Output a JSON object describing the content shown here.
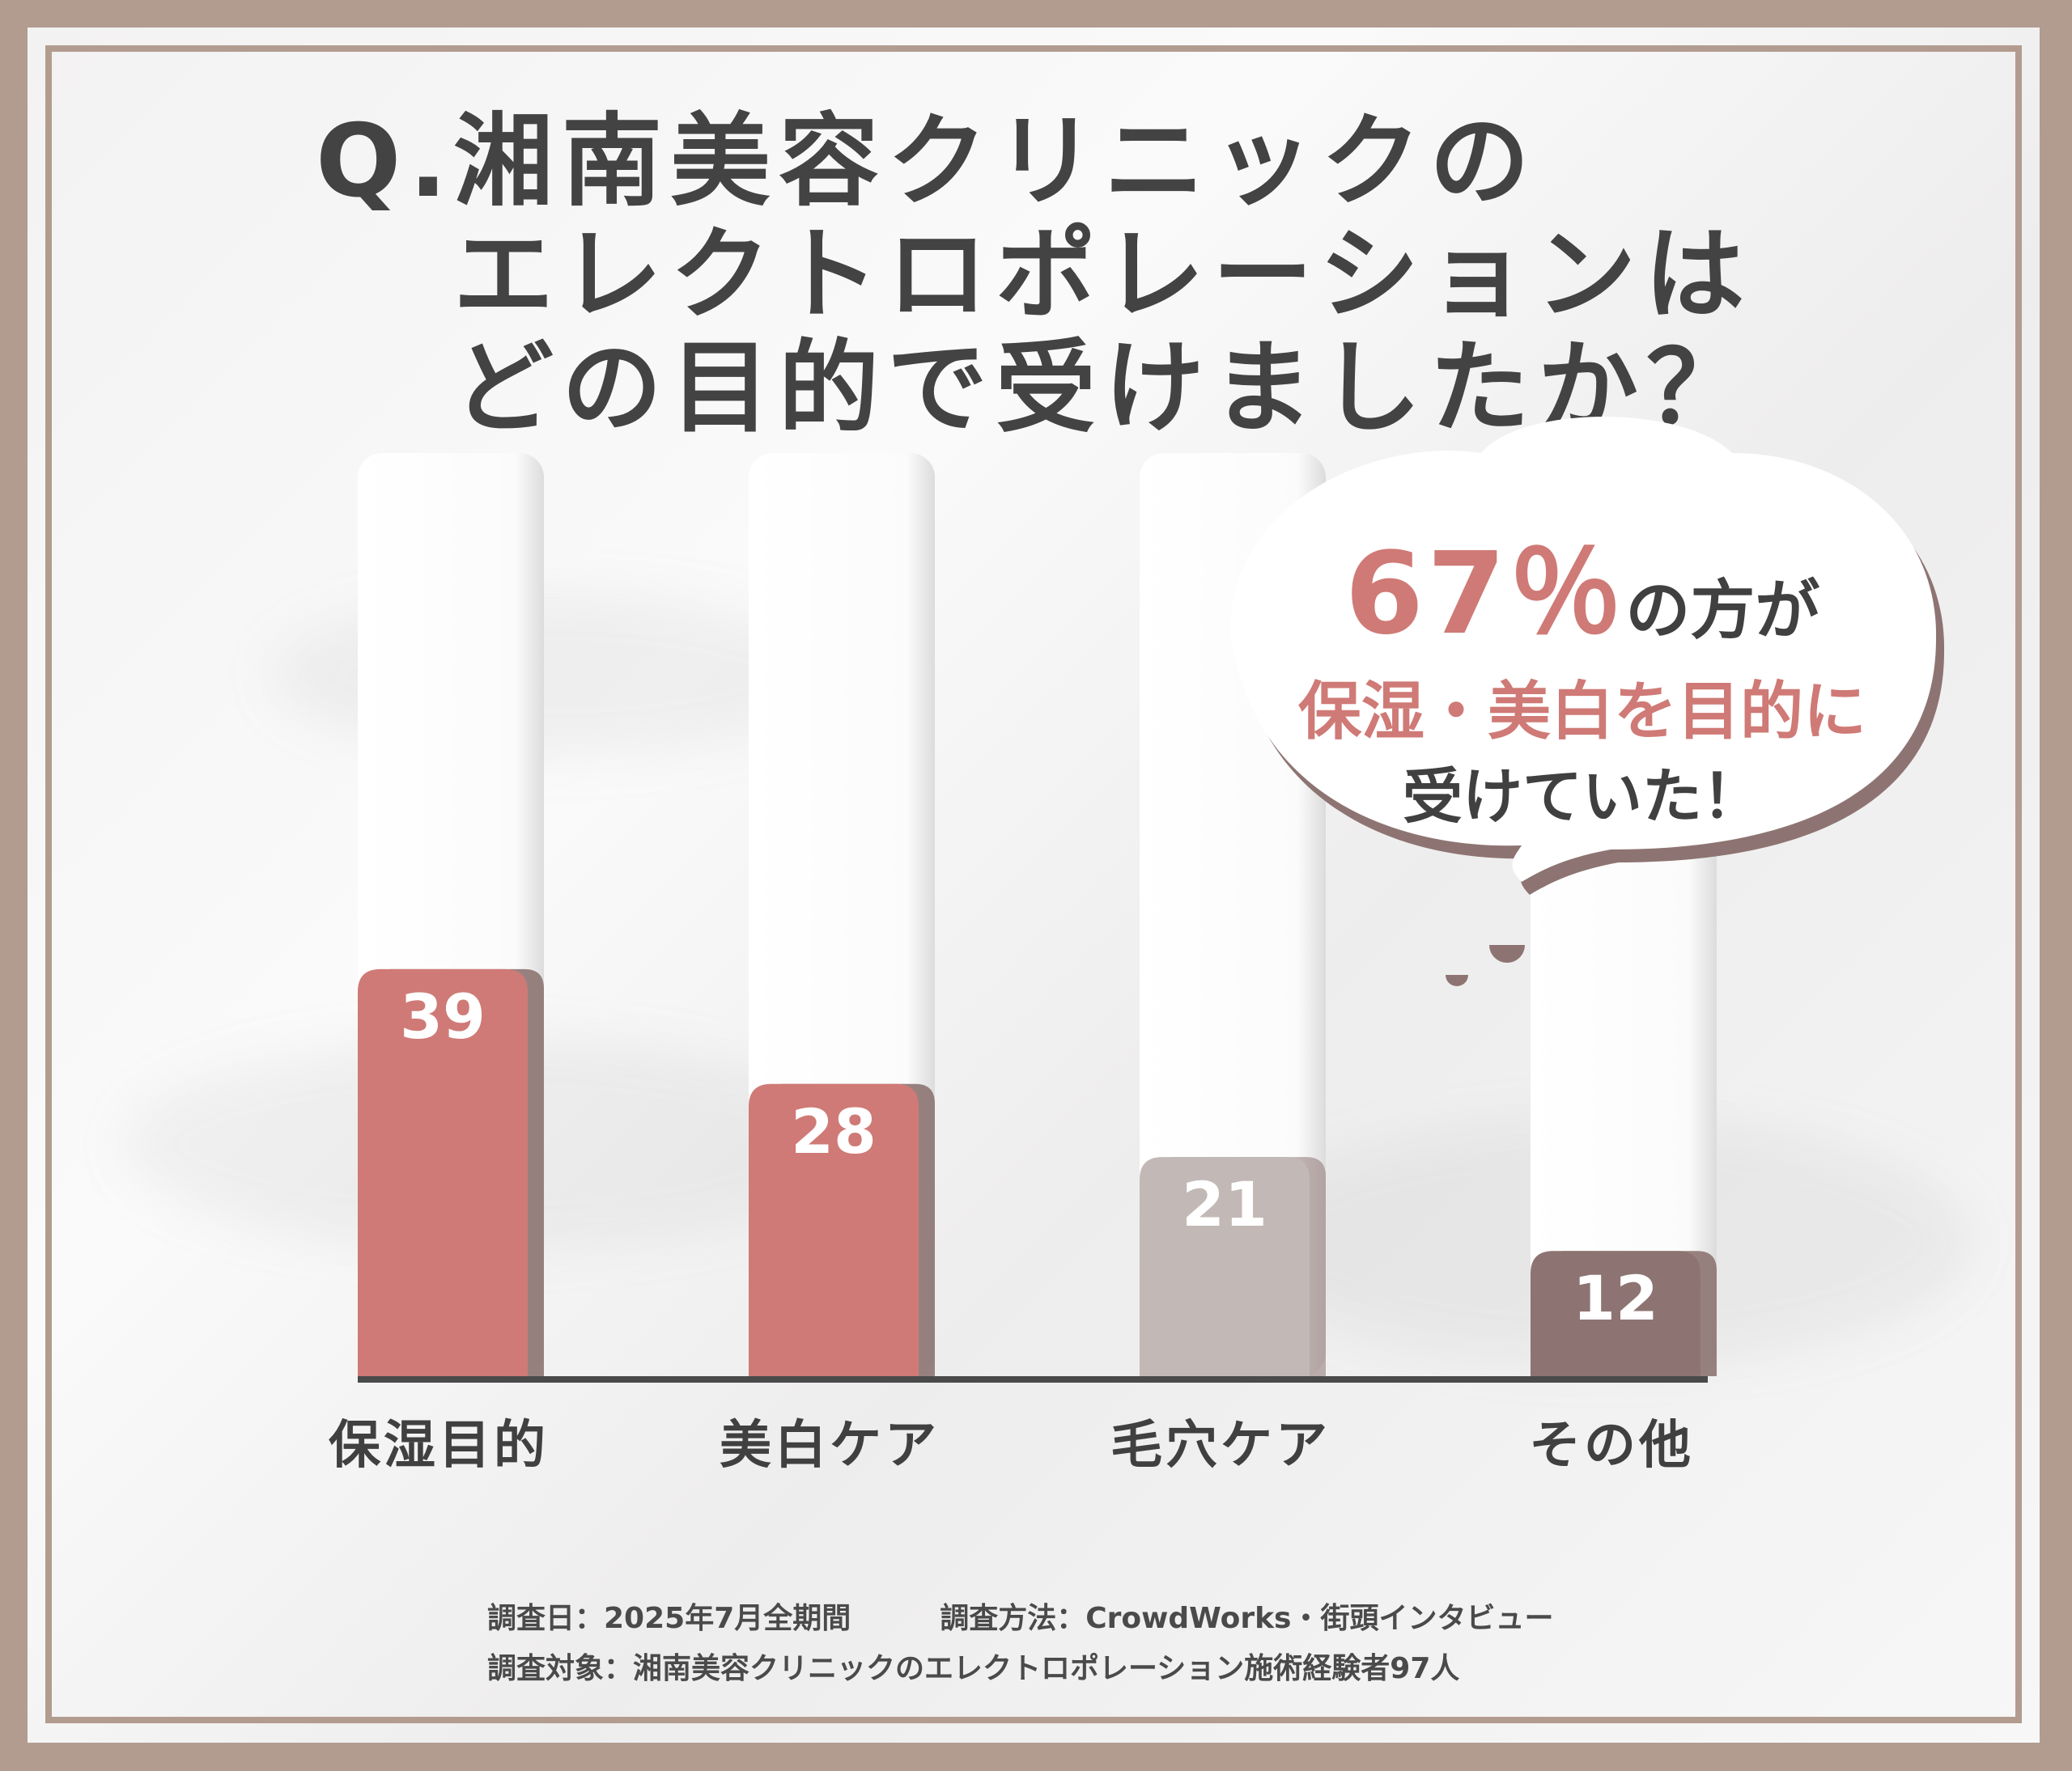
{
  "title": {
    "q": "Q.",
    "line1": "湘南美容クリニックの",
    "line2": "エレクトロポレーションは",
    "line3": "どの目的で受けましたか？"
  },
  "callout": {
    "pct": "67％",
    "pct_suffix": "の方が",
    "line2": "保湿・美白を目的に",
    "line3": "受けていた！"
  },
  "chart_data": {
    "type": "bar",
    "categories": [
      "保湿目的",
      "美白ケア",
      "毛穴ケア",
      "その他"
    ],
    "values": [
      39,
      28,
      21,
      12
    ],
    "bar_colors": [
      "#cf7a76",
      "#cf7a76",
      "#c2b9b6",
      "#8d7472"
    ],
    "title": "",
    "xlabel": "",
    "ylabel": "",
    "ylim": [
      0,
      90
    ]
  },
  "footer": {
    "date": "調査日：2025年7月全期間",
    "method": "調査方法：CrowdWorks・街頭インタビュー",
    "target": "調査対象：湘南美容クリニックのエレクトロポレーション施術経験者97人"
  },
  "colors": {
    "frame": "#b29c90",
    "accent": "#cf7a76",
    "text": "#434343"
  }
}
